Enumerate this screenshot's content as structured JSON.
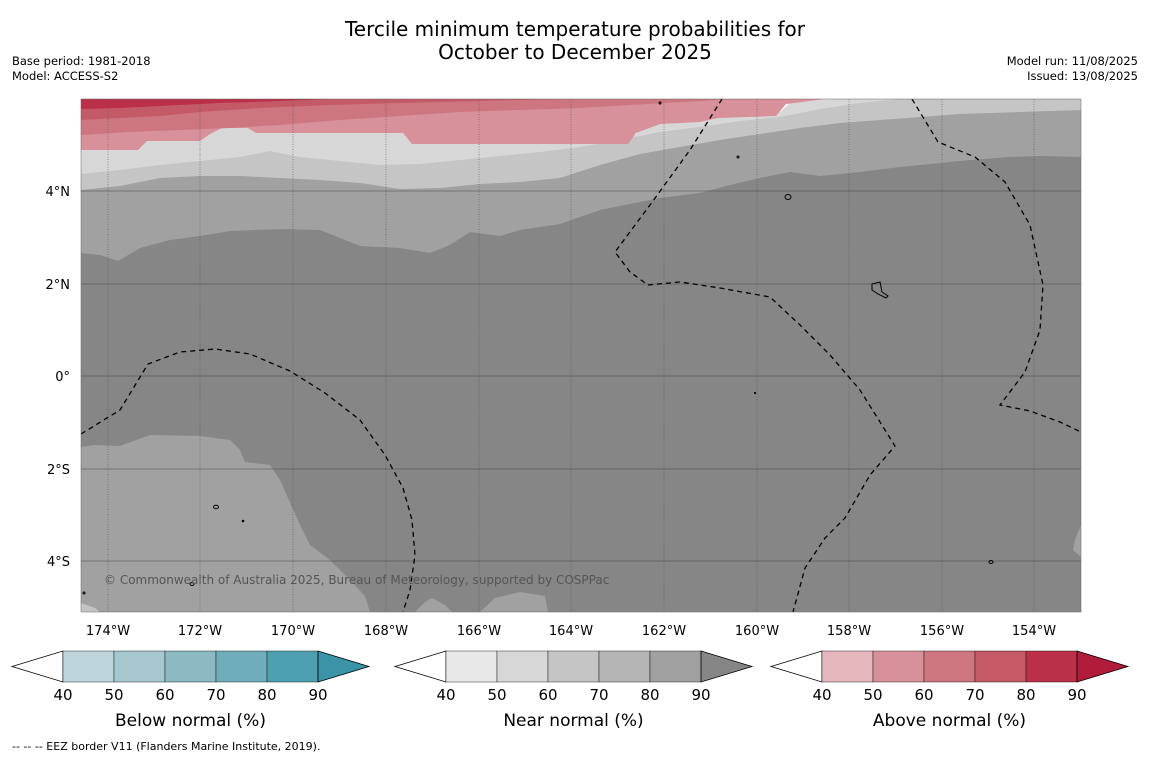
{
  "title": {
    "line1": "Tercile minimum temperature probabilities for",
    "line2": "October to December 2025"
  },
  "meta_left": {
    "base_period": "Base period: 1981-2018",
    "model": "Model: ACCESS-S2"
  },
  "meta_right": {
    "model_run": "Model run: 11/08/2025",
    "issued": "Issued: 13/08/2025"
  },
  "map": {
    "lat_labels": [
      "4°N",
      "2°N",
      "0°",
      "2°S",
      "4°S"
    ],
    "lon_labels": [
      "174°W",
      "172°W",
      "170°W",
      "168°W",
      "166°W",
      "164°W",
      "162°W",
      "160°W",
      "158°W",
      "156°W",
      "154°W"
    ],
    "copyright": "© Commonwealth of Australia 2025, Bureau of Meteorology, supported by COSPPac"
  },
  "colorbars": [
    {
      "label": "Below normal (%)",
      "ticks": [
        "40",
        "50",
        "60",
        "70",
        "80",
        "90"
      ],
      "colors": [
        "#ffffff",
        "#bcd6dc",
        "#a6c9cf",
        "#8cbac4",
        "#6fadba",
        "#4e9faf",
        "#3a93a6"
      ]
    },
    {
      "label": "Near normal (%)",
      "ticks": [
        "40",
        "50",
        "60",
        "70",
        "80",
        "90"
      ],
      "colors": [
        "#ffffff",
        "#e8e8e8",
        "#d7d7d7",
        "#c5c5c5",
        "#b4b4b4",
        "#a1a1a1",
        "#868686"
      ]
    },
    {
      "label": "Above normal (%)",
      "ticks": [
        "40",
        "50",
        "60",
        "70",
        "80",
        "90"
      ],
      "colors": [
        "#ffffff",
        "#e4b8bd",
        "#d8919a",
        "#cd7680",
        "#c55a67",
        "#bb2f48",
        "#b01c3a"
      ]
    }
  ],
  "footer": "--  --  -- EEZ border V11 (Flanders Marine Institute, 2019)."
}
